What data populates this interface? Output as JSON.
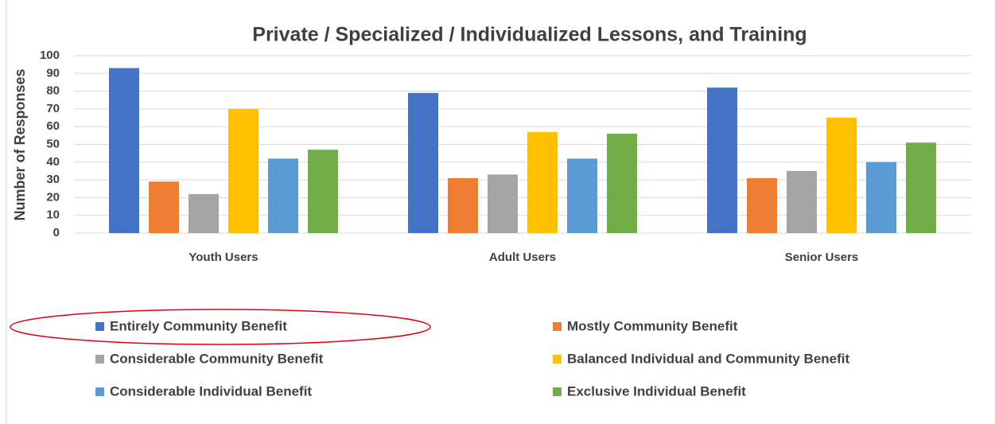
{
  "chart_data": {
    "type": "bar",
    "title": "Private / Specialized / Individualized Lessons, and Training",
    "ylabel": "Number of Responses",
    "categories": [
      "Youth Users",
      "Adult Users",
      "Senior Users"
    ],
    "series": [
      {
        "name": "Entirely Community Benefit",
        "color": "#4472c4",
        "values": [
          93,
          79,
          82
        ]
      },
      {
        "name": "Mostly Community Benefit",
        "color": "#ed7d31",
        "values": [
          29,
          31,
          31
        ]
      },
      {
        "name": "Considerable Community Benefit",
        "color": "#a5a5a5",
        "values": [
          22,
          33,
          35
        ]
      },
      {
        "name": "Balanced Individual and Community Benefit",
        "color": "#ffc000",
        "values": [
          70,
          57,
          65
        ]
      },
      {
        "name": "Considerable Individual Benefit",
        "color": "#5b9bd5",
        "values": [
          42,
          42,
          40
        ]
      },
      {
        "name": "Exclusive Individual Benefit",
        "color": "#70ad47",
        "values": [
          47,
          56,
          51
        ]
      }
    ],
    "ylim": [
      0,
      100
    ],
    "yticks": [
      0,
      10,
      20,
      30,
      40,
      50,
      60,
      70,
      80,
      90,
      100
    ],
    "grid": true
  }
}
